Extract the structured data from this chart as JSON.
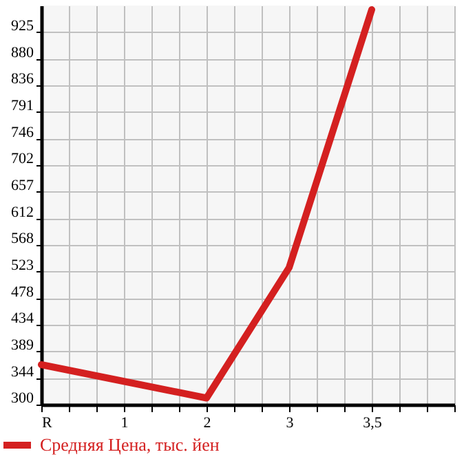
{
  "chart_data": {
    "type": "line",
    "categories": [
      "R",
      "1",
      "2",
      "3",
      "3,5",
      null
    ],
    "series": [
      {
        "name": "Средняя Цена, тыс. йен",
        "color": "#d42020",
        "values": [
          367,
          339,
          311,
          530,
          963,
          null
        ]
      }
    ],
    "ylim": [
      300,
      970
    ],
    "yticks": [
      300,
      344,
      389,
      434,
      478,
      523,
      568,
      612,
      657,
      702,
      746,
      791,
      836,
      880,
      925
    ],
    "grid": true,
    "legend": "bottom left",
    "marker": "none",
    "line_style": "solid"
  }
}
